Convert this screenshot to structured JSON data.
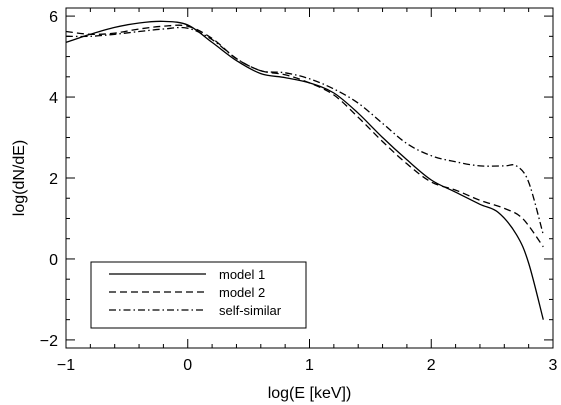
{
  "chart_data": {
    "type": "line",
    "xlabel": "log(E [keV])",
    "ylabel": "log(dN/dE)",
    "xlim": [
      -1,
      3
    ],
    "ylim": [
      -2.2,
      6.2
    ],
    "xticks": [
      -1,
      0,
      1,
      2,
      3
    ],
    "yticks": [
      -2,
      0,
      2,
      4,
      6
    ],
    "grid": false,
    "legend_position": "bottom-left",
    "series": [
      {
        "name": "model 1",
        "dash": "solid",
        "x": [
          -1,
          -0.8,
          -0.6,
          -0.4,
          -0.2,
          0,
          0.2,
          0.4,
          0.6,
          0.8,
          1.0,
          1.2,
          1.4,
          1.6,
          1.8,
          2.0,
          2.2,
          2.4,
          2.55,
          2.7,
          2.8,
          2.92
        ],
        "y": [
          5.35,
          5.55,
          5.72,
          5.83,
          5.87,
          5.78,
          5.35,
          4.9,
          4.58,
          4.48,
          4.35,
          4.1,
          3.6,
          3.0,
          2.45,
          1.95,
          1.65,
          1.35,
          1.15,
          0.6,
          -0.1,
          -1.5
        ]
      },
      {
        "name": "model 2",
        "dash": "dashed",
        "x": [
          -1,
          -0.8,
          -0.6,
          -0.4,
          -0.2,
          0,
          0.2,
          0.4,
          0.6,
          0.8,
          1.0,
          1.2,
          1.4,
          1.6,
          1.8,
          2.0,
          2.2,
          2.4,
          2.6,
          2.75,
          2.92
        ],
        "y": [
          5.62,
          5.55,
          5.58,
          5.68,
          5.75,
          5.75,
          5.45,
          4.95,
          4.65,
          4.55,
          4.35,
          4.05,
          3.5,
          2.9,
          2.35,
          1.9,
          1.7,
          1.45,
          1.25,
          1.0,
          0.3
        ]
      },
      {
        "name": "self-similar",
        "dash": "dashdot",
        "x": [
          -1,
          -0.8,
          -0.6,
          -0.4,
          -0.2,
          0,
          0.2,
          0.4,
          0.6,
          0.8,
          1.0,
          1.2,
          1.4,
          1.6,
          1.8,
          2.0,
          2.2,
          2.4,
          2.6,
          2.7,
          2.8,
          2.92
        ],
        "y": [
          5.5,
          5.5,
          5.55,
          5.62,
          5.68,
          5.7,
          5.42,
          4.95,
          4.65,
          4.6,
          4.45,
          4.2,
          3.85,
          3.35,
          2.85,
          2.55,
          2.4,
          2.3,
          2.3,
          2.3,
          1.9,
          0.6
        ]
      }
    ]
  }
}
